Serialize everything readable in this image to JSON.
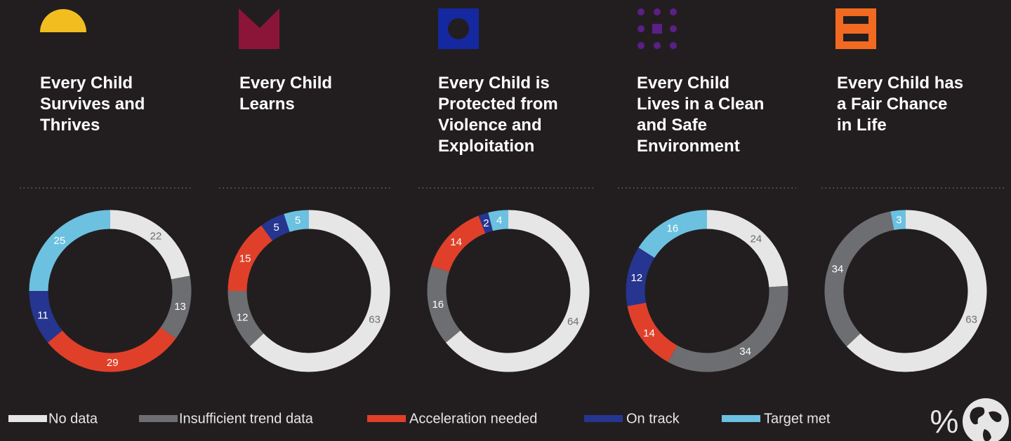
{
  "chart_data": [
    {
      "type": "donut",
      "title": "Every Child Survives and Thrives",
      "values": [
        22,
        13,
        29,
        11,
        25
      ]
    },
    {
      "type": "donut",
      "title": "Every Child Learns",
      "values": [
        63,
        12,
        15,
        5,
        5
      ]
    },
    {
      "type": "donut",
      "title": "Every Child is Protected from Violence and Exploitation",
      "values": [
        64,
        16,
        14,
        2,
        4
      ]
    },
    {
      "type": "donut",
      "title": "Every Child Lives in a Clean and Safe Environment",
      "values": [
        24,
        34,
        14,
        12,
        16
      ]
    },
    {
      "type": "donut",
      "title": "Every Child has a Fair Chance in Life",
      "values": [
        63,
        34,
        null,
        null,
        3
      ]
    }
  ],
  "legend": {
    "labels": [
      "No data",
      "Insufficient trend data",
      "Acceleration needed",
      "On track",
      "Target met"
    ],
    "colors": [
      "#e6e6e6",
      "#6d6e71",
      "#e0402a",
      "#26358f",
      "#6cc1e0"
    ]
  },
  "footer_symbol": "%"
}
